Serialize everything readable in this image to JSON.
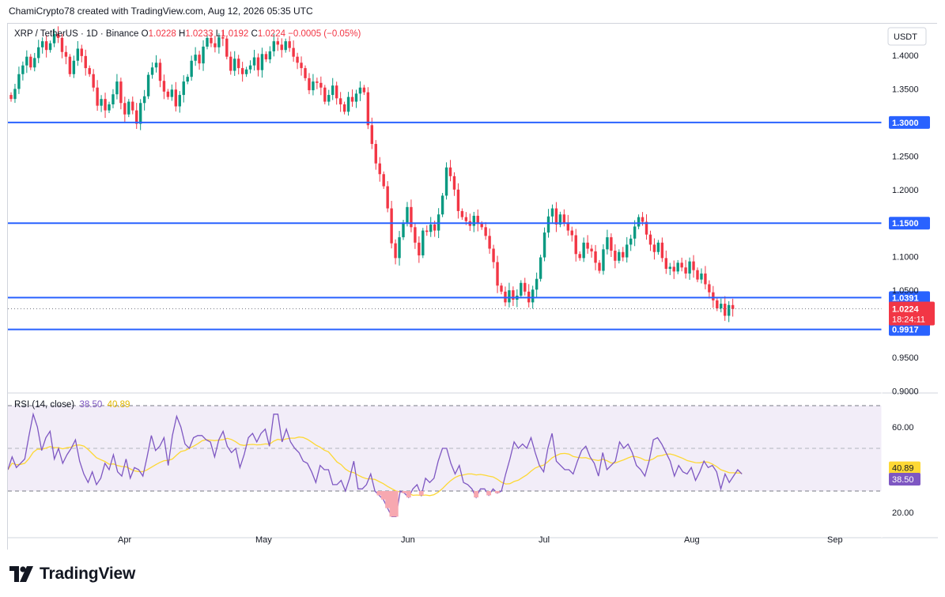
{
  "header": {
    "attribution": "ChamiCrypto78 created with TradingView.com, Aug 12, 2026 05:35 UTC"
  },
  "logo": {
    "text": "TradingView",
    "icon": "tradingview-logo-icon"
  },
  "colors": {
    "up": "#089981",
    "down": "#f23645",
    "hline": "#2962ff",
    "rsi": "#7e57c2",
    "rsi_ma": "#fdd835",
    "rsi_band": "#ede7f6",
    "last_price": "#f23645"
  },
  "chart_data": [
    {
      "type": "candlestick",
      "legend": {
        "symbol": "XRP / TetherUS · 1D · Binance",
        "o_label": "O",
        "o": "1.0228",
        "h_label": "H",
        "h": "1.0233",
        "l_label": "L",
        "l": "1.0192",
        "c_label": "C",
        "c": "1.0224",
        "change": "−0.0005 (−0.05%)"
      },
      "currency": "USDT",
      "y_ticks": [
        "1.4000",
        "1.3500",
        "1.2500",
        "1.2000",
        "1.1000",
        "1.0500",
        "0.9500",
        "0.9000"
      ],
      "ylim": [
        0.9,
        1.42
      ],
      "x_ticks": [
        "Apr",
        "May",
        "Jun",
        "Jul",
        "Aug",
        "Sep"
      ],
      "horizontal_levels": [
        {
          "value": 1.3,
          "label": "1.3000"
        },
        {
          "value": 1.15,
          "label": "1.1500"
        },
        {
          "value": 1.0391,
          "label": "1.0391"
        },
        {
          "value": 0.9917,
          "label": "0.9917"
        }
      ],
      "last_price": {
        "value": 1.0224,
        "label": "1.0224",
        "countdown": "18:24:11"
      },
      "closes": [
        1.335,
        1.35,
        1.372,
        1.385,
        1.398,
        1.382,
        1.396,
        1.412,
        1.421,
        1.408,
        1.418,
        1.432,
        1.426,
        1.405,
        1.398,
        1.372,
        1.392,
        1.41,
        1.399,
        1.381,
        1.372,
        1.352,
        1.325,
        1.335,
        1.318,
        1.327,
        1.342,
        1.361,
        1.329,
        1.312,
        1.331,
        1.318,
        1.298,
        1.329,
        1.339,
        1.371,
        1.382,
        1.389,
        1.362,
        1.346,
        1.338,
        1.349,
        1.324,
        1.341,
        1.361,
        1.368,
        1.392,
        1.401,
        1.388,
        1.413,
        1.426,
        1.418,
        1.412,
        1.427,
        1.425,
        1.398,
        1.377,
        1.395,
        1.381,
        1.372,
        1.379,
        1.385,
        1.397,
        1.378,
        1.402,
        1.394,
        1.406,
        1.421,
        1.416,
        1.408,
        1.421,
        1.411,
        1.398,
        1.389,
        1.381,
        1.366,
        1.348,
        1.361,
        1.359,
        1.352,
        1.331,
        1.341,
        1.355,
        1.336,
        1.327,
        1.316,
        1.338,
        1.331,
        1.343,
        1.352,
        1.345,
        1.296,
        1.268,
        1.239,
        1.223,
        1.205,
        1.172,
        1.12,
        1.098,
        1.129,
        1.151,
        1.174,
        1.144,
        1.121,
        1.102,
        1.139,
        1.137,
        1.148,
        1.139,
        1.163,
        1.191,
        1.233,
        1.22,
        1.2,
        1.168,
        1.159,
        1.153,
        1.146,
        1.161,
        1.149,
        1.144,
        1.131,
        1.112,
        1.092,
        1.057,
        1.048,
        1.032,
        1.05,
        1.036,
        1.042,
        1.061,
        1.048,
        1.032,
        1.051,
        1.067,
        1.099,
        1.136,
        1.16,
        1.172,
        1.148,
        1.163,
        1.151,
        1.139,
        1.132,
        1.104,
        1.098,
        1.121,
        1.112,
        1.108,
        1.091,
        1.079,
        1.111,
        1.129,
        1.109,
        1.094,
        1.107,
        1.099,
        1.118,
        1.127,
        1.145,
        1.159,
        1.152,
        1.133,
        1.118,
        1.107,
        1.121,
        1.098,
        1.082,
        1.085,
        1.078,
        1.091,
        1.084,
        1.075,
        1.093,
        1.08,
        1.066,
        1.075,
        1.059,
        1.047,
        1.035,
        1.023,
        1.03,
        1.012,
        1.028,
        1.022
      ],
      "rsi": {
        "label": "RSI (14, close)",
        "value_label": "38.50",
        "ma_label": "40.89",
        "y_ticks": [
          "60.00",
          "20.00"
        ],
        "ylim": [
          15,
          84
        ],
        "bands": [
          70,
          50,
          30
        ],
        "values": [
          40,
          46,
          41,
          43,
          45,
          56,
          66,
          60,
          49,
          55,
          58,
          45,
          50,
          43,
          47,
          50,
          54,
          44,
          38,
          34,
          39,
          33,
          36,
          43,
          40,
          47,
          39,
          37,
          45,
          36,
          41,
          40,
          37,
          46,
          56,
          49,
          51,
          55,
          42,
          56,
          65,
          60,
          52,
          50,
          55,
          56,
          56,
          54,
          53,
          46,
          54,
          58,
          51,
          48,
          50,
          41,
          47,
          55,
          57,
          53,
          57,
          59,
          51,
          66,
          66,
          53,
          59,
          53,
          50,
          48,
          44,
          43,
          39,
          34,
          42,
          40,
          40,
          33,
          33,
          35,
          30,
          36,
          44,
          31,
          31,
          33,
          38,
          30,
          28,
          26,
          22,
          18,
          18,
          30,
          29,
          27,
          31,
          33,
          28,
          36,
          34,
          36,
          44,
          50,
          50,
          43,
          38,
          42,
          34,
          33,
          31,
          27,
          31,
          31,
          28,
          31,
          29,
          30,
          38,
          45,
          53,
          50,
          52,
          50,
          55,
          48,
          42,
          39,
          50,
          57,
          44,
          42,
          40,
          40,
          38,
          44,
          49,
          51,
          46,
          43,
          37,
          48,
          40,
          42,
          44,
          53,
          50,
          52,
          48,
          42,
          40,
          37,
          44,
          54,
          55,
          52,
          48,
          44,
          37,
          42,
          39,
          38,
          41,
          35,
          39,
          44,
          41,
          42,
          39,
          31,
          38,
          34,
          37,
          40,
          38
        ]
      }
    }
  ]
}
